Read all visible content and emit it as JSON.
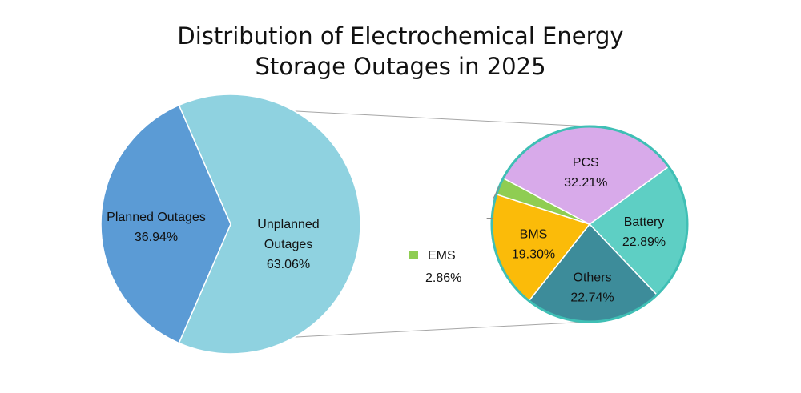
{
  "chart_data": {
    "type": "pie",
    "title_lines": [
      "Distribution of Electrochemical Energy",
      "Storage Outages in 2025"
    ],
    "main_pie": {
      "slices": [
        {
          "label_lines": [
            "Planned Outages"
          ],
          "value": 36.94,
          "value_label": "36.94%",
          "color": "#5b9bd5"
        },
        {
          "label_lines": [
            "Unplanned",
            "Outages"
          ],
          "value": 63.06,
          "value_label": "63.06%",
          "color": "#8fd2e0"
        }
      ]
    },
    "breakdown_pie": {
      "parent_slice": "Unplanned Outages",
      "slices": [
        {
          "label_lines": [
            "Battery"
          ],
          "value": 22.89,
          "value_label": "22.89%",
          "color": "#5ecfc4"
        },
        {
          "label_lines": [
            "Others"
          ],
          "value": 22.74,
          "value_label": "22.74%",
          "color": "#3d8c9a"
        },
        {
          "label_lines": [
            "BMS"
          ],
          "value": 19.3,
          "value_label": "19.30%",
          "color": "#fbbb09"
        },
        {
          "label_lines": [
            "EMS"
          ],
          "value": 2.86,
          "value_label": "2.86%",
          "color": "#8fcd52"
        },
        {
          "label_lines": [
            "PCS"
          ],
          "value": 32.21,
          "value_label": "32.21%",
          "color": "#d8aaea"
        }
      ],
      "border_color": "#3fbfb5"
    }
  }
}
